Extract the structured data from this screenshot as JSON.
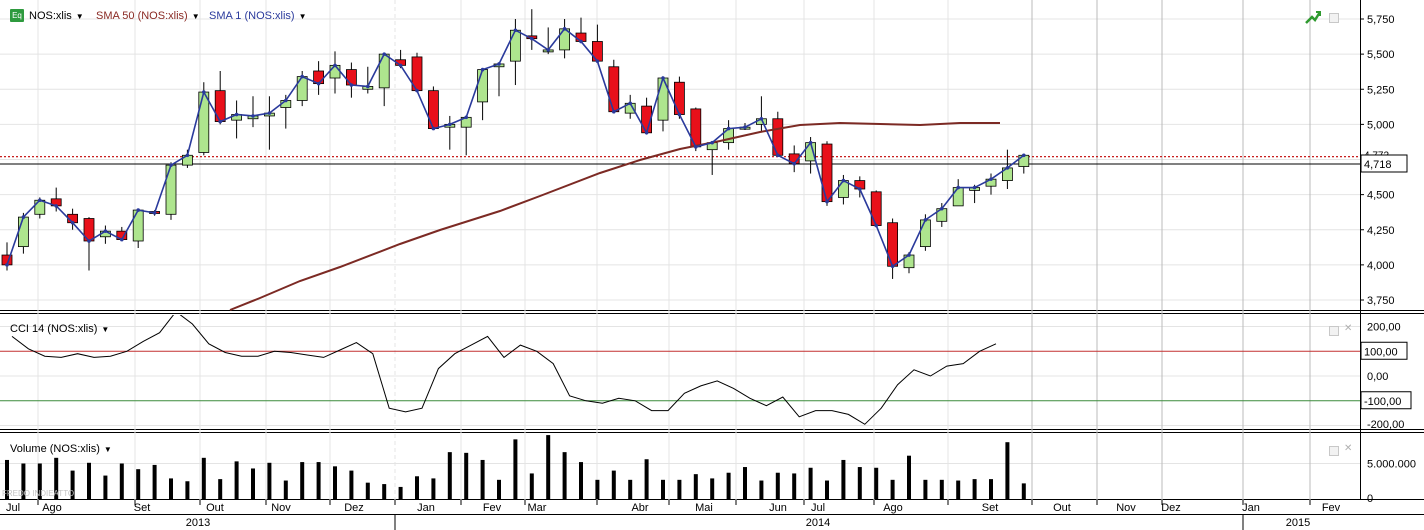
{
  "header": {
    "symbol_legend": "NOS:xlis",
    "sma50_legend": "SMA 50 (NOS:xlis)",
    "sma1_legend": "SMA 1 (NOS:xlis)",
    "icon": "Eq"
  },
  "cci_panel": {
    "legend": "CCI 14 (NOS:xlis)"
  },
  "volume_panel": {
    "legend": "Volume (NOS:xlis)"
  },
  "watermark": "FREDO INDIEATTO",
  "colors": {
    "up": "#aee58e",
    "down": "#e8101a",
    "sma50": "#7c2a24",
    "sma1": "#2a3a9c",
    "ref_line": "#c00000",
    "cci_high": "#c43030",
    "cci_low": "#3c8c3c"
  },
  "chart_data": [
    {
      "type": "candlestick",
      "x_labels": [
        "Jul",
        "Ago",
        "Set",
        "Out",
        "Nov",
        "Dez",
        "Jan",
        "Fev",
        "Mar",
        "Abr",
        "Mai",
        "Jun",
        "Jul",
        "Ago",
        "Set",
        "Out",
        "Nov",
        "Dez",
        "Jan",
        "Fev"
      ],
      "year_labels": [
        "2013",
        "2014",
        "2015"
      ],
      "y_ticks": [
        "5,750",
        "5,500",
        "5,250",
        "5,000",
        "4,750",
        "4,500",
        "4,250",
        "4,000",
        "3,750"
      ],
      "ylim": [
        3700,
        5850
      ],
      "last_price_label": "4,718",
      "overlay_label": "4,772",
      "candles": [
        [
          4.07,
          4.16,
          3.96,
          4.0
        ],
        [
          4.13,
          4.37,
          4.08,
          4.34
        ],
        [
          4.36,
          4.48,
          4.33,
          4.46
        ],
        [
          4.47,
          4.55,
          4.38,
          4.42
        ],
        [
          4.36,
          4.4,
          4.25,
          4.3
        ],
        [
          4.33,
          4.34,
          3.96,
          4.17
        ],
        [
          4.2,
          4.28,
          4.15,
          4.24
        ],
        [
          4.24,
          4.27,
          4.17,
          4.18
        ],
        [
          4.17,
          4.4,
          4.12,
          4.39
        ],
        [
          4.38,
          4.39,
          4.35,
          4.37
        ],
        [
          4.36,
          4.73,
          4.32,
          4.71
        ],
        [
          4.71,
          4.82,
          4.69,
          4.78
        ],
        [
          4.8,
          5.3,
          4.78,
          5.23
        ],
        [
          5.24,
          5.38,
          5.0,
          5.02
        ],
        [
          5.03,
          5.17,
          4.9,
          5.07
        ],
        [
          5.04,
          5.2,
          4.98,
          5.06
        ],
        [
          5.06,
          5.2,
          4.82,
          5.08
        ],
        [
          5.12,
          5.21,
          4.97,
          5.17
        ],
        [
          5.17,
          5.38,
          5.13,
          5.34
        ],
        [
          5.38,
          5.45,
          5.21,
          5.29
        ],
        [
          5.33,
          5.52,
          5.22,
          5.42
        ],
        [
          5.39,
          5.44,
          5.19,
          5.28
        ],
        [
          5.25,
          5.41,
          5.22,
          5.27
        ],
        [
          5.26,
          5.5,
          5.13,
          5.5
        ],
        [
          5.46,
          5.53,
          5.4,
          5.42
        ],
        [
          5.48,
          5.51,
          5.27,
          5.24
        ],
        [
          5.24,
          5.27,
          4.96,
          4.97
        ],
        [
          4.98,
          5.06,
          4.82,
          5.0
        ],
        [
          4.98,
          5.06,
          4.78,
          5.05
        ],
        [
          5.16,
          5.37,
          5.03,
          5.39
        ],
        [
          5.41,
          5.43,
          5.2,
          5.43
        ],
        [
          5.45,
          5.75,
          5.28,
          5.67
        ],
        [
          5.63,
          5.82,
          5.53,
          5.61
        ],
        [
          5.52,
          5.69,
          5.5,
          5.53
        ],
        [
          5.53,
          5.75,
          5.47,
          5.68
        ],
        [
          5.65,
          5.76,
          5.6,
          5.59
        ],
        [
          5.59,
          5.71,
          5.5,
          5.45
        ],
        [
          5.41,
          5.46,
          5.09,
          5.09
        ],
        [
          5.08,
          5.21,
          5.04,
          5.15
        ],
        [
          5.13,
          5.19,
          4.95,
          4.94
        ],
        [
          5.03,
          5.31,
          4.95,
          5.33
        ],
        [
          5.3,
          5.34,
          5.04,
          5.07
        ],
        [
          5.11,
          5.12,
          4.81,
          4.84
        ],
        [
          4.82,
          4.88,
          4.64,
          4.87
        ],
        [
          4.87,
          5.03,
          4.82,
          4.97
        ],
        [
          4.97,
          5.01,
          4.96,
          4.98
        ],
        [
          5.0,
          5.2,
          4.95,
          5.04
        ],
        [
          5.04,
          5.09,
          4.8,
          4.78
        ],
        [
          4.79,
          4.85,
          4.66,
          4.72
        ],
        [
          4.74,
          4.91,
          4.65,
          4.87
        ],
        [
          4.86,
          4.88,
          4.42,
          4.45
        ],
        [
          4.48,
          4.64,
          4.43,
          4.6
        ],
        [
          4.6,
          4.63,
          4.48,
          4.54
        ],
        [
          4.52,
          4.53,
          4.28,
          4.28
        ],
        [
          4.3,
          4.33,
          3.9,
          3.99
        ],
        [
          3.98,
          4.09,
          3.94,
          4.07
        ],
        [
          4.13,
          4.36,
          4.1,
          4.32
        ],
        [
          4.31,
          4.44,
          4.27,
          4.4
        ],
        [
          4.42,
          4.61,
          4.42,
          4.55
        ],
        [
          4.53,
          4.57,
          4.44,
          4.55
        ],
        [
          4.56,
          4.65,
          4.5,
          4.61
        ],
        [
          4.6,
          4.82,
          4.54,
          4.69
        ],
        [
          4.7,
          4.77,
          4.65,
          4.78
        ]
      ],
      "sma50": [
        [
          230,
          310
        ],
        [
          260,
          298
        ],
        [
          300,
          281
        ],
        [
          340,
          267
        ],
        [
          400,
          244
        ],
        [
          440,
          230
        ],
        [
          500,
          211
        ],
        [
          540,
          196
        ],
        [
          600,
          173
        ],
        [
          640,
          160
        ],
        [
          680,
          149
        ],
        [
          720,
          141
        ],
        [
          760,
          132
        ],
        [
          800,
          125
        ],
        [
          840,
          123
        ],
        [
          880,
          124
        ],
        [
          920,
          125
        ],
        [
          960,
          123
        ],
        [
          1000,
          123
        ]
      ],
      "sma50_start_x": 230,
      "ref_level": 4770,
      "last_level": 4718
    },
    {
      "type": "line",
      "name": "CCI 14",
      "y_ticks": [
        "200,00",
        "0,00"
      ],
      "level_labels": [
        "100,00",
        "-100,00",
        "-200,00"
      ],
      "ylim": [
        -210,
        225
      ],
      "values": [
        160,
        110,
        80,
        75,
        90,
        75,
        80,
        100,
        140,
        175,
        260,
        210,
        130,
        95,
        80,
        80,
        100,
        95,
        85,
        75,
        105,
        135,
        90,
        -130,
        -145,
        -130,
        30,
        90,
        125,
        160,
        75,
        125,
        100,
        50,
        -80,
        -100,
        -110,
        -90,
        -100,
        -140,
        -140,
        -70,
        -40,
        -20,
        -50,
        -90,
        -120,
        -85,
        -165,
        -140,
        -140,
        -155,
        -195,
        -130,
        -35,
        25,
        0,
        40,
        50,
        100,
        130
      ]
    },
    {
      "type": "bar",
      "name": "Volume",
      "y_ticks": [
        "5.000.000",
        "0"
      ],
      "ylim": [
        0,
        9500000
      ],
      "values": [
        5.5,
        5,
        5,
        5.8,
        4,
        5.1,
        3.3,
        5,
        4.2,
        4.8,
        2.9,
        2.5,
        5.8,
        2.8,
        5.3,
        4.3,
        5.1,
        2.6,
        5.2,
        5.2,
        4.6,
        4,
        2.3,
        2.1,
        1.7,
        3.2,
        2.9,
        6.6,
        6.5,
        5.5,
        2.7,
        8.4,
        3.6,
        9,
        6.6,
        5.2,
        2.7,
        4,
        2.7,
        5.6,
        2.7,
        2.7,
        3.5,
        2.9,
        3.7,
        4.5,
        2.6,
        3.7,
        3.6,
        4.4,
        2.6,
        5.5,
        4.5,
        4.4,
        2.7,
        6.1,
        2.7,
        2.7,
        2.6,
        2.8,
        2.8,
        8,
        2.2
      ]
    }
  ]
}
